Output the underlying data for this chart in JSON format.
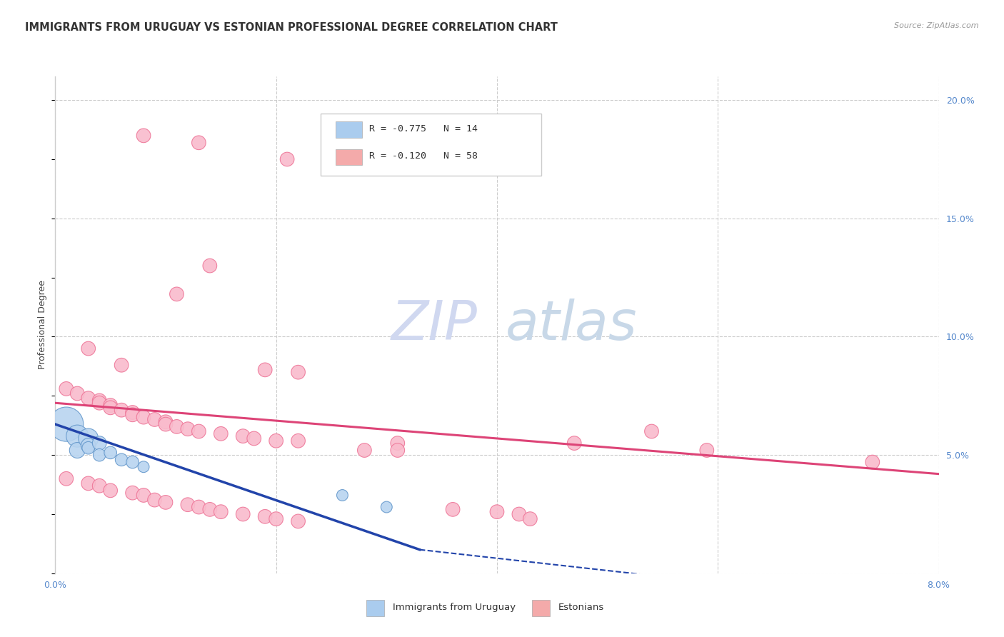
{
  "title": "IMMIGRANTS FROM URUGUAY VS ESTONIAN PROFESSIONAL DEGREE CORRELATION CHART",
  "source": "Source: ZipAtlas.com",
  "ylabel": "Professional Degree",
  "watermark_zip": "ZIP",
  "watermark_atlas": "atlas",
  "xlim": [
    0.0,
    0.08
  ],
  "ylim": [
    0.0,
    0.21
  ],
  "xticks": [
    0.0,
    0.02,
    0.04,
    0.06,
    0.08
  ],
  "xticklabels": [
    "0.0%",
    "",
    "",
    "",
    "8.0%"
  ],
  "yticks_right": [
    0.0,
    0.05,
    0.1,
    0.15,
    0.2
  ],
  "yticklabels_right": [
    "",
    "5.0%",
    "10.0%",
    "15.0%",
    "20.0%"
  ],
  "legend_entries": [
    {
      "label": "R = -0.775   N = 14",
      "color": "#aaccee"
    },
    {
      "label": "R = -0.120   N = 58",
      "color": "#f4aaaa"
    }
  ],
  "legend_bottom": [
    {
      "label": "Immigrants from Uruguay",
      "color": "#aaccee"
    },
    {
      "label": "Estonians",
      "color": "#f4aaaa"
    }
  ],
  "blue_points": [
    [
      0.001,
      0.063
    ],
    [
      0.002,
      0.058
    ],
    [
      0.002,
      0.052
    ],
    [
      0.003,
      0.057
    ],
    [
      0.003,
      0.054
    ],
    [
      0.003,
      0.053
    ],
    [
      0.004,
      0.055
    ],
    [
      0.004,
      0.05
    ],
    [
      0.005,
      0.051
    ],
    [
      0.006,
      0.048
    ],
    [
      0.007,
      0.047
    ],
    [
      0.008,
      0.045
    ],
    [
      0.026,
      0.033
    ],
    [
      0.03,
      0.028
    ]
  ],
  "blue_sizes": [
    1200,
    500,
    250,
    400,
    220,
    160,
    200,
    160,
    160,
    160,
    160,
    130,
    130,
    130
  ],
  "pink_points": [
    [
      0.008,
      0.185
    ],
    [
      0.013,
      0.182
    ],
    [
      0.021,
      0.175
    ],
    [
      0.014,
      0.13
    ],
    [
      0.011,
      0.118
    ],
    [
      0.003,
      0.095
    ],
    [
      0.006,
      0.088
    ],
    [
      0.019,
      0.086
    ],
    [
      0.022,
      0.085
    ],
    [
      0.001,
      0.078
    ],
    [
      0.002,
      0.076
    ],
    [
      0.003,
      0.074
    ],
    [
      0.004,
      0.073
    ],
    [
      0.004,
      0.072
    ],
    [
      0.005,
      0.071
    ],
    [
      0.005,
      0.07
    ],
    [
      0.006,
      0.069
    ],
    [
      0.007,
      0.068
    ],
    [
      0.007,
      0.067
    ],
    [
      0.008,
      0.066
    ],
    [
      0.009,
      0.065
    ],
    [
      0.01,
      0.064
    ],
    [
      0.01,
      0.063
    ],
    [
      0.011,
      0.062
    ],
    [
      0.012,
      0.061
    ],
    [
      0.013,
      0.06
    ],
    [
      0.015,
      0.059
    ],
    [
      0.017,
      0.058
    ],
    [
      0.018,
      0.057
    ],
    [
      0.02,
      0.056
    ],
    [
      0.001,
      0.04
    ],
    [
      0.003,
      0.038
    ],
    [
      0.004,
      0.037
    ],
    [
      0.005,
      0.035
    ],
    [
      0.007,
      0.034
    ],
    [
      0.008,
      0.033
    ],
    [
      0.009,
      0.031
    ],
    [
      0.01,
      0.03
    ],
    [
      0.012,
      0.029
    ],
    [
      0.013,
      0.028
    ],
    [
      0.014,
      0.027
    ],
    [
      0.015,
      0.026
    ],
    [
      0.017,
      0.025
    ],
    [
      0.019,
      0.024
    ],
    [
      0.02,
      0.023
    ],
    [
      0.022,
      0.022
    ],
    [
      0.022,
      0.056
    ],
    [
      0.028,
      0.052
    ],
    [
      0.031,
      0.055
    ],
    [
      0.031,
      0.052
    ],
    [
      0.036,
      0.027
    ],
    [
      0.04,
      0.026
    ],
    [
      0.042,
      0.025
    ],
    [
      0.043,
      0.023
    ],
    [
      0.047,
      0.055
    ],
    [
      0.054,
      0.06
    ],
    [
      0.059,
      0.052
    ],
    [
      0.074,
      0.047
    ]
  ],
  "pink_sizes": [
    200,
    200,
    200,
    200,
    200,
    200,
    200,
    200,
    200,
    200,
    200,
    200,
    200,
    200,
    200,
    200,
    200,
    200,
    200,
    200,
    200,
    200,
    200,
    200,
    200,
    200,
    200,
    200,
    200,
    200,
    200,
    200,
    200,
    200,
    200,
    200,
    200,
    200,
    200,
    200,
    200,
    200,
    200,
    200,
    200,
    200,
    200,
    200,
    200,
    200,
    200,
    200,
    200,
    200,
    200,
    200,
    200,
    200
  ],
  "blue_line_solid": {
    "x": [
      0.0,
      0.033
    ],
    "y": [
      0.063,
      0.01
    ]
  },
  "blue_line_dash": {
    "x": [
      0.033,
      0.058
    ],
    "y": [
      0.01,
      -0.003
    ]
  },
  "pink_line": {
    "x": [
      0.0,
      0.08
    ],
    "y": [
      0.072,
      0.042
    ]
  },
  "blue_line_color": "#2244aa",
  "pink_line_color": "#dd4477",
  "grid_color": "#cccccc",
  "bg_color": "#ffffff",
  "title_fontsize": 10.5,
  "axis_label_fontsize": 9,
  "tick_fontsize": 9,
  "watermark_color_zip": "#d0d8f0",
  "watermark_color_atlas": "#c8d8e8",
  "watermark_fontsize": 55
}
